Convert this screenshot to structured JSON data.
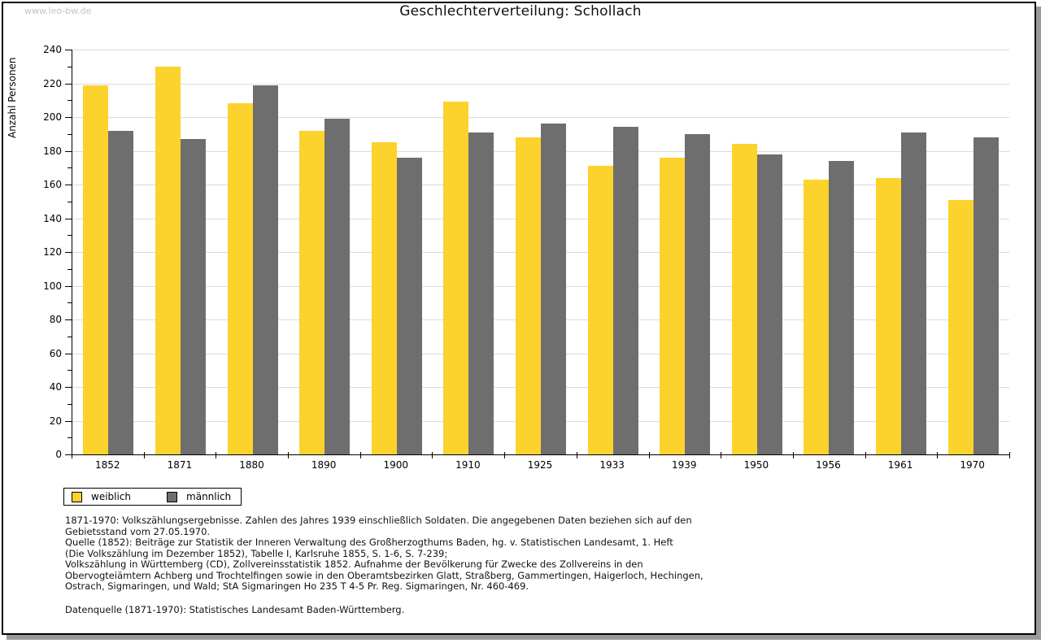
{
  "watermark": "www.leo-bw.de",
  "chart_data": {
    "type": "bar",
    "title": "Geschlechterverteilung: Schollach",
    "ylabel": "Anzahl Personen",
    "xlabel": "",
    "ylim": [
      0,
      240
    ],
    "ytick_step": 20,
    "yminor_step": 10,
    "grid": true,
    "legend_position": "bottom-left",
    "categories": [
      "1852",
      "1871",
      "1880",
      "1890",
      "1900",
      "1910",
      "1925",
      "1933",
      "1939",
      "1950",
      "1956",
      "1961",
      "1970"
    ],
    "series": [
      {
        "name": "weiblich",
        "color": "#fcd22d",
        "values": [
          219,
          230,
          208,
          192,
          185,
          209,
          188,
          171,
          176,
          184,
          163,
          164,
          151
        ]
      },
      {
        "name": "männlich",
        "color": "#6e6e6e",
        "values": [
          192,
          187,
          219,
          199,
          176,
          191,
          196,
          194,
          190,
          178,
          174,
          191,
          188
        ]
      }
    ]
  },
  "footnotes": {
    "lines": [
      "1871-1970: Volkszählungsergebnisse. Zahlen des Jahres 1939 einschließlich Soldaten. Die angegebenen Daten beziehen sich auf den",
      "Gebietsstand vom 27.05.1970.",
      "Quelle (1852): Beiträge zur Statistik der Inneren Verwaltung des Großherzogthums Baden, hg. v. Statistischen Landesamt, 1. Heft",
      "(Die Volkszählung im Dezember 1852), Tabelle I, Karlsruhe 1855, S. 1-6, S. 7-239;",
      "Volkszählung in Württemberg (CD), Zollvereinsstatistik 1852. Aufnahme der Bevölkerung für Zwecke des Zollvereins in den",
      "Obervogteiämtern Achberg und Trochtelfingen sowie in den Oberamtsbezirken Glatt, Straßberg, Gammertingen, Haigerloch, Hechingen,",
      "Ostrach, Sigmaringen, und Wald; StA Sigmaringen Ho 235 T 4-5 Pr. Reg. Sigmaringen, Nr. 460-469."
    ],
    "datasource": "Datenquelle (1871-1970): Statistisches Landesamt Baden-Württemberg."
  }
}
